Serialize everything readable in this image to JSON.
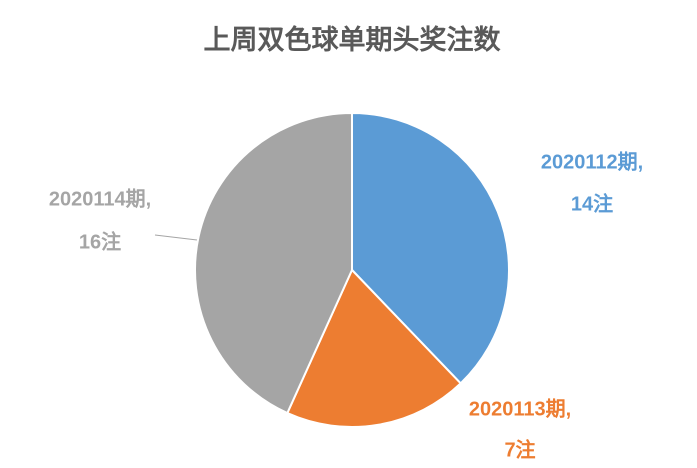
{
  "chart_data": {
    "type": "pie",
    "title": "上周双色球单期头奖注数",
    "categories": [
      "2020112期,",
      "2020113期,",
      "2020114期,"
    ],
    "values": [
      14,
      7,
      16
    ],
    "value_labels": [
      "14注",
      "7注",
      "16注"
    ],
    "colors": [
      "#5b9bd5",
      "#ed7d31",
      "#a5a5a5"
    ]
  }
}
